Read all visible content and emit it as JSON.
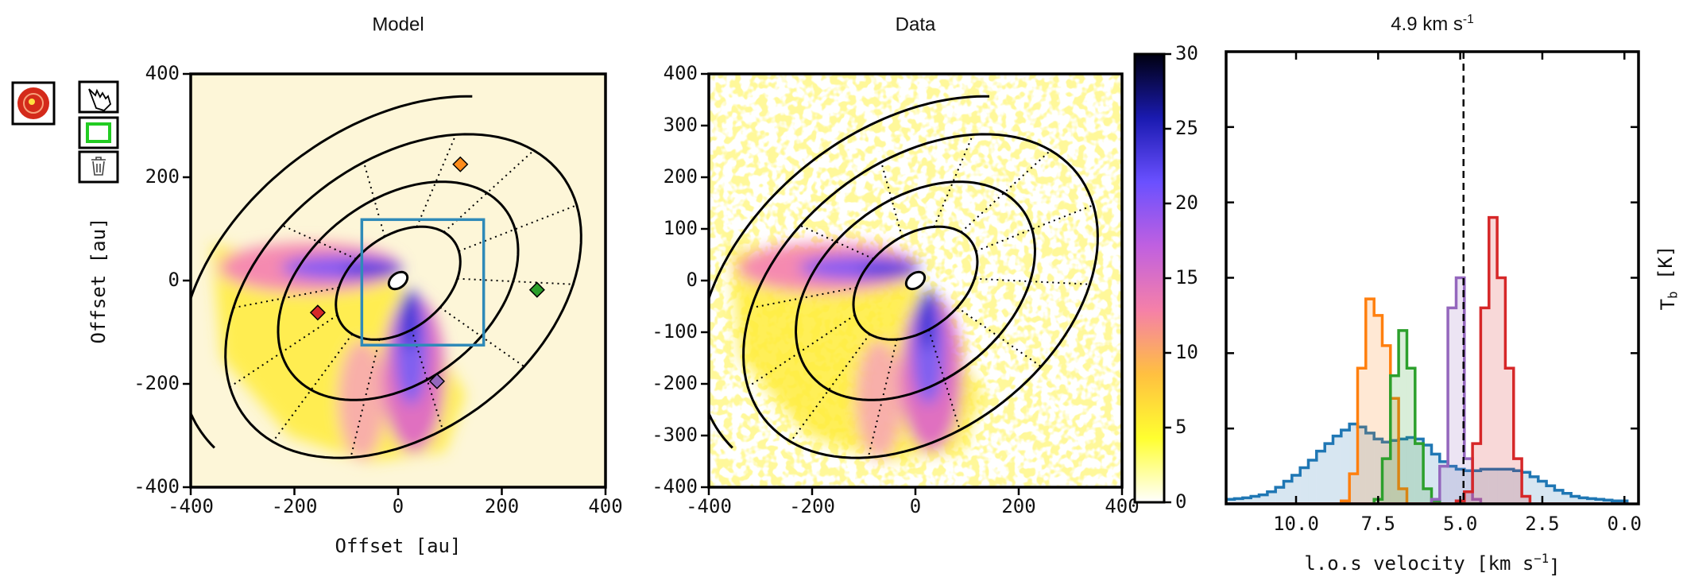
{
  "chart_data": [
    {
      "type": "heatmap",
      "title": "Model",
      "xlabel": "Offset [au]",
      "ylabel": "Offset [au]",
      "xlim": [
        -400,
        400
      ],
      "ylim": [
        -400,
        400
      ],
      "xticks": [
        -400,
        -200,
        0,
        200,
        400
      ],
      "yticks": [
        -400,
        -200,
        0,
        200,
        400
      ],
      "background": "#fdf6d8",
      "noise": false,
      "markers": [
        {
          "x": 120,
          "y": 225,
          "color": "#ff8c1a"
        },
        {
          "x": 268,
          "y": -18,
          "color": "#2ca02c"
        },
        {
          "x": -155,
          "y": -62,
          "color": "#d62728"
        },
        {
          "x": 75,
          "y": -195,
          "color": "#9467bd"
        }
      ],
      "box": {
        "x": [
          -70,
          165
        ],
        "y": [
          -125,
          118
        ],
        "color": "#2f8ab8"
      }
    },
    {
      "type": "heatmap",
      "title": "Data",
      "xlim": [
        -400,
        400
      ],
      "ylim": [
        -400,
        400
      ],
      "xticks": [
        -400,
        -200,
        0,
        200,
        400
      ],
      "yticks": [
        -400,
        -300,
        -200,
        -100,
        0,
        100,
        200,
        300,
        400
      ],
      "background": "#ffffff",
      "noise": true,
      "colorbar": {
        "lim": [
          0,
          30
        ],
        "ticks": [
          0,
          5,
          10,
          15,
          20,
          25,
          30
        ],
        "colors": [
          "#ffffff",
          "#ffff30",
          "#ffc040",
          "#f580a8",
          "#c060e0",
          "#6a50ff",
          "#1a1ab0",
          "#000010"
        ]
      }
    },
    {
      "type": "step",
      "title": [
        "4.9 km s",
        "-1"
      ],
      "xlabel": [
        "l.o.s velocity [km s",
        "−1",
        "]"
      ],
      "ylabel": [
        "T",
        "b",
        " [K]"
      ],
      "xlim": [
        12.13,
        -0.43
      ],
      "ylim": [
        0,
        30
      ],
      "xticks": [
        {
          "value": 10,
          "label": "10.0"
        },
        7.5,
        {
          "value": 5,
          "label": "5.0"
        },
        2.5,
        {
          "value": 0,
          "label": "0.0"
        }
      ],
      "yticks": [
        0,
        5,
        10,
        15,
        20,
        25,
        30
      ],
      "vline": 4.9,
      "x": [
        12,
        11.75,
        11.5,
        11.25,
        11,
        10.75,
        10.5,
        10.25,
        10,
        9.75,
        9.5,
        9.25,
        9,
        8.75,
        8.5,
        8.25,
        8,
        7.75,
        7.5,
        7.25,
        7,
        6.75,
        6.5,
        6.25,
        6,
        5.75,
        5.5,
        5.25,
        5,
        4.75,
        4.5,
        4.25,
        4,
        3.75,
        3.5,
        3.25,
        3,
        2.75,
        2.5,
        2.25,
        2,
        1.75,
        1.5,
        1.25,
        1,
        0.75,
        0.5,
        0.25,
        0
      ],
      "series": [
        {
          "color": "#1f77b4",
          "values": [
            0.3,
            0.35,
            0.4,
            0.5,
            0.6,
            0.8,
            1.1,
            1.5,
            1.9,
            2.4,
            2.9,
            3.5,
            4.0,
            4.5,
            4.9,
            5.3,
            5.1,
            4.7,
            4.3,
            4.1,
            4.2,
            4.3,
            4.4,
            4.3,
            3.9,
            3.3,
            2.8,
            2.5,
            2.3,
            2.2,
            2.2,
            2.3,
            2.3,
            2.3,
            2.3,
            2.2,
            2.1,
            1.8,
            1.5,
            1.2,
            0.9,
            0.7,
            0.5,
            0.4,
            0.35,
            0.3,
            0.25,
            0.2,
            0.2
          ]
        },
        {
          "color": "#ff7f0e",
          "values": [
            0,
            0,
            0,
            0,
            0,
            0,
            0,
            0,
            0,
            0,
            0,
            0,
            0,
            0,
            0.2,
            2,
            9,
            13.6,
            12.5,
            10.5,
            7,
            1,
            0,
            0,
            0,
            0,
            0,
            0,
            0,
            0,
            0,
            0,
            0,
            0,
            0,
            0,
            0,
            0,
            0,
            0,
            0,
            0,
            0,
            0,
            0,
            0,
            0,
            0,
            0
          ]
        },
        {
          "color": "#2ca02c",
          "values": [
            0,
            0,
            0,
            0,
            0,
            0,
            0,
            0,
            0,
            0,
            0,
            0,
            0,
            0,
            0,
            0,
            0,
            0,
            0.3,
            3,
            8.5,
            11.5,
            9,
            4,
            1,
            0.2,
            0,
            0,
            0,
            0,
            0,
            0,
            0,
            0,
            0,
            0,
            0,
            0,
            0,
            0,
            0,
            0,
            0,
            0,
            0,
            0,
            0,
            0,
            0
          ]
        },
        {
          "color": "#9467bd",
          "values": [
            0,
            0,
            0,
            0,
            0,
            0,
            0,
            0,
            0,
            0,
            0,
            0,
            0,
            0,
            0,
            0,
            0,
            0,
            0,
            0,
            0,
            0,
            0,
            0,
            0,
            0.3,
            2.5,
            13,
            15,
            3,
            0.3,
            0,
            0,
            0,
            0,
            0,
            0,
            0,
            0,
            0,
            0,
            0,
            0,
            0,
            0,
            0,
            0,
            0,
            0
          ]
        },
        {
          "color": "#d62728",
          "values": [
            0,
            0,
            0,
            0,
            0,
            0,
            0,
            0,
            0,
            0,
            0,
            0,
            0,
            0,
            0,
            0,
            0,
            0,
            0,
            0,
            0,
            0,
            0,
            0,
            0,
            0,
            0,
            0,
            0.2,
            0.8,
            4,
            13,
            19,
            15,
            9,
            3,
            0.5,
            0,
            0,
            0,
            0,
            0,
            0,
            0,
            0,
            0,
            0,
            0,
            0
          ]
        }
      ]
    }
  ]
}
